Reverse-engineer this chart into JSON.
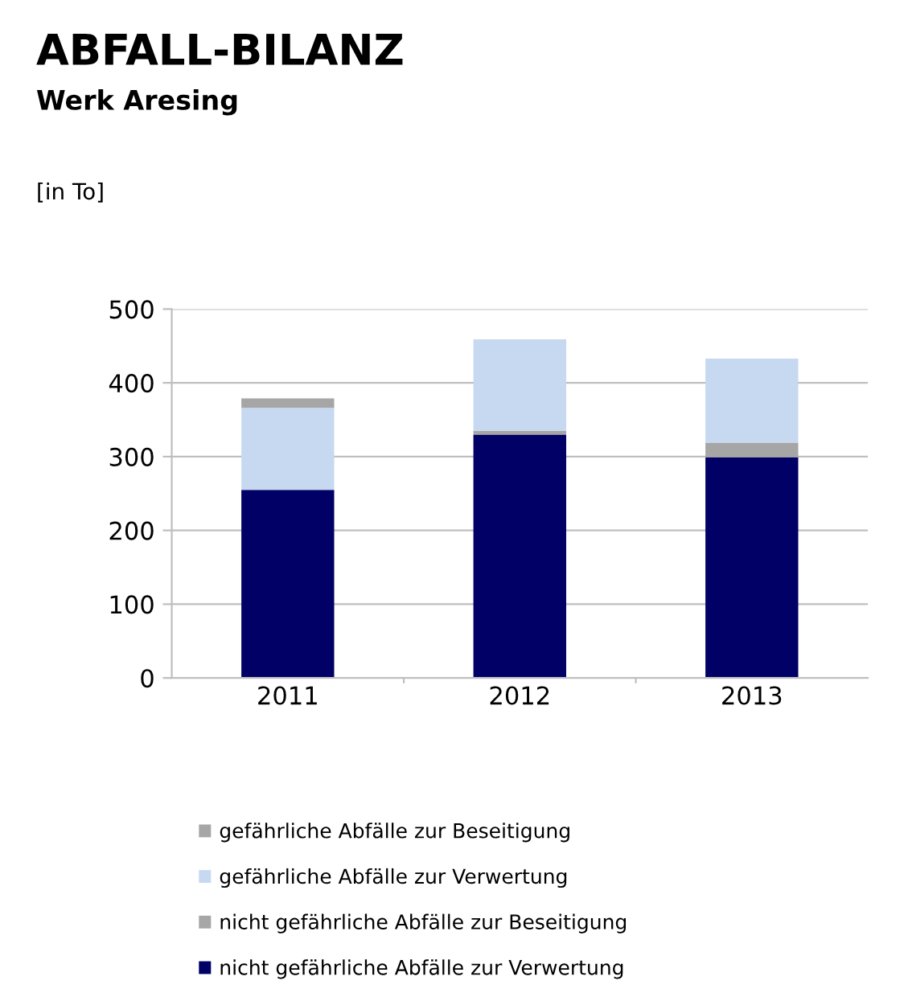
{
  "chart_data": {
    "type": "bar",
    "title": "ABFALL-BILANZ",
    "subtitle": "Werk Aresing",
    "ylabel": "[in To]",
    "categories": [
      "2011",
      "2012",
      "2013"
    ],
    "stacked": true,
    "series": [
      {
        "name": "nicht gefährliche Abfälle zur Verwertung",
        "color": "#000066",
        "values": [
          255,
          330,
          299
        ]
      },
      {
        "name": "nicht gefährliche Abfälle zur Beseitigung",
        "color": "#a6a6a6",
        "values": [
          0,
          5,
          20
        ]
      },
      {
        "name": "gefährliche Abfälle zur Verwertung",
        "color": "#c6d9f1",
        "values": [
          111,
          124,
          114
        ]
      },
      {
        "name": "gefährliche Abfälle zur Beseitigung",
        "color": "#a6a6a6",
        "values": [
          13,
          0,
          0
        ]
      }
    ],
    "ylim": [
      0,
      500
    ],
    "yticks": [
      0,
      100,
      200,
      300,
      400,
      500
    ],
    "grid": "y",
    "legend": "bottom"
  }
}
